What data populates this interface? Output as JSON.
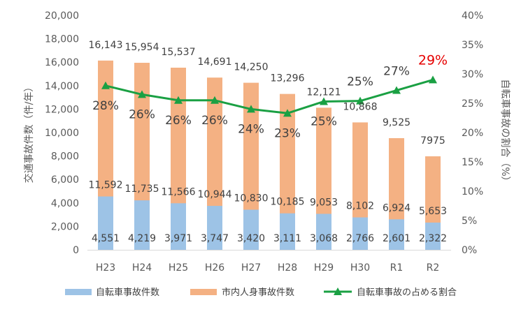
{
  "chart_data": {
    "type": "bar",
    "categories": [
      "H23",
      "H24",
      "H25",
      "H26",
      "H27",
      "H28",
      "H29",
      "H30",
      "R1",
      "R2"
    ],
    "series": [
      {
        "name": "自転車事故件数",
        "values": [
          4551,
          4219,
          3971,
          3747,
          3420,
          3111,
          3068,
          2766,
          2601,
          2322
        ],
        "labels": [
          "4,551",
          "4,219",
          "3,971",
          "3,747",
          "3,420",
          "3,111",
          "3,068",
          "2,766",
          "2,601",
          "2,322"
        ],
        "color": "#9dc3e6"
      },
      {
        "name": "市内人身事故件数",
        "values": [
          16143,
          15954,
          15537,
          14691,
          14250,
          13296,
          12121,
          10868,
          9525,
          7975
        ],
        "labels": [
          "16,143",
          "15,954",
          "15,537",
          "14,691",
          "14,250",
          "13,296",
          "12,121",
          "10,868",
          "9,525",
          "7975"
        ],
        "color": "#f4b183"
      },
      {
        "name": "自転車事故の占める割合",
        "type": "line",
        "axis": "right",
        "values": [
          28,
          26.5,
          25.5,
          25.5,
          24,
          23.3,
          25.3,
          25.4,
          27.2,
          29
        ],
        "labels": [
          "28%",
          "26%",
          "26%",
          "26%",
          "24%",
          "23%",
          "25%",
          "25%",
          "27%",
          "29%"
        ],
        "color": "#1aa043",
        "highlight_color": "#e60000"
      }
    ],
    "mid_labels": [
      "11,592",
      "11,735",
      "11,566",
      "10,944",
      "10,830",
      "10,185",
      "9,053",
      "8,102",
      "6,924",
      "5,653"
    ],
    "left_axis": {
      "title": "交通事故件数（件/年）",
      "range": [
        0,
        20000
      ],
      "ticks": [
        "0",
        "2,000",
        "4,000",
        "6,000",
        "8,000",
        "10,000",
        "12,000",
        "14,000",
        "16,000",
        "18,000",
        "20,000"
      ]
    },
    "right_axis": {
      "title": "自転車事故の割合（%）",
      "range": [
        0,
        40
      ],
      "ticks": [
        "0%",
        "5%",
        "10%",
        "15%",
        "20%",
        "25%",
        "30%",
        "35%",
        "40%"
      ]
    },
    "legend": {
      "position": "bottom",
      "items": [
        "自転車事故件数",
        "市内人身事故件数",
        "自転車事故の占める割合"
      ]
    },
    "grid": false
  }
}
